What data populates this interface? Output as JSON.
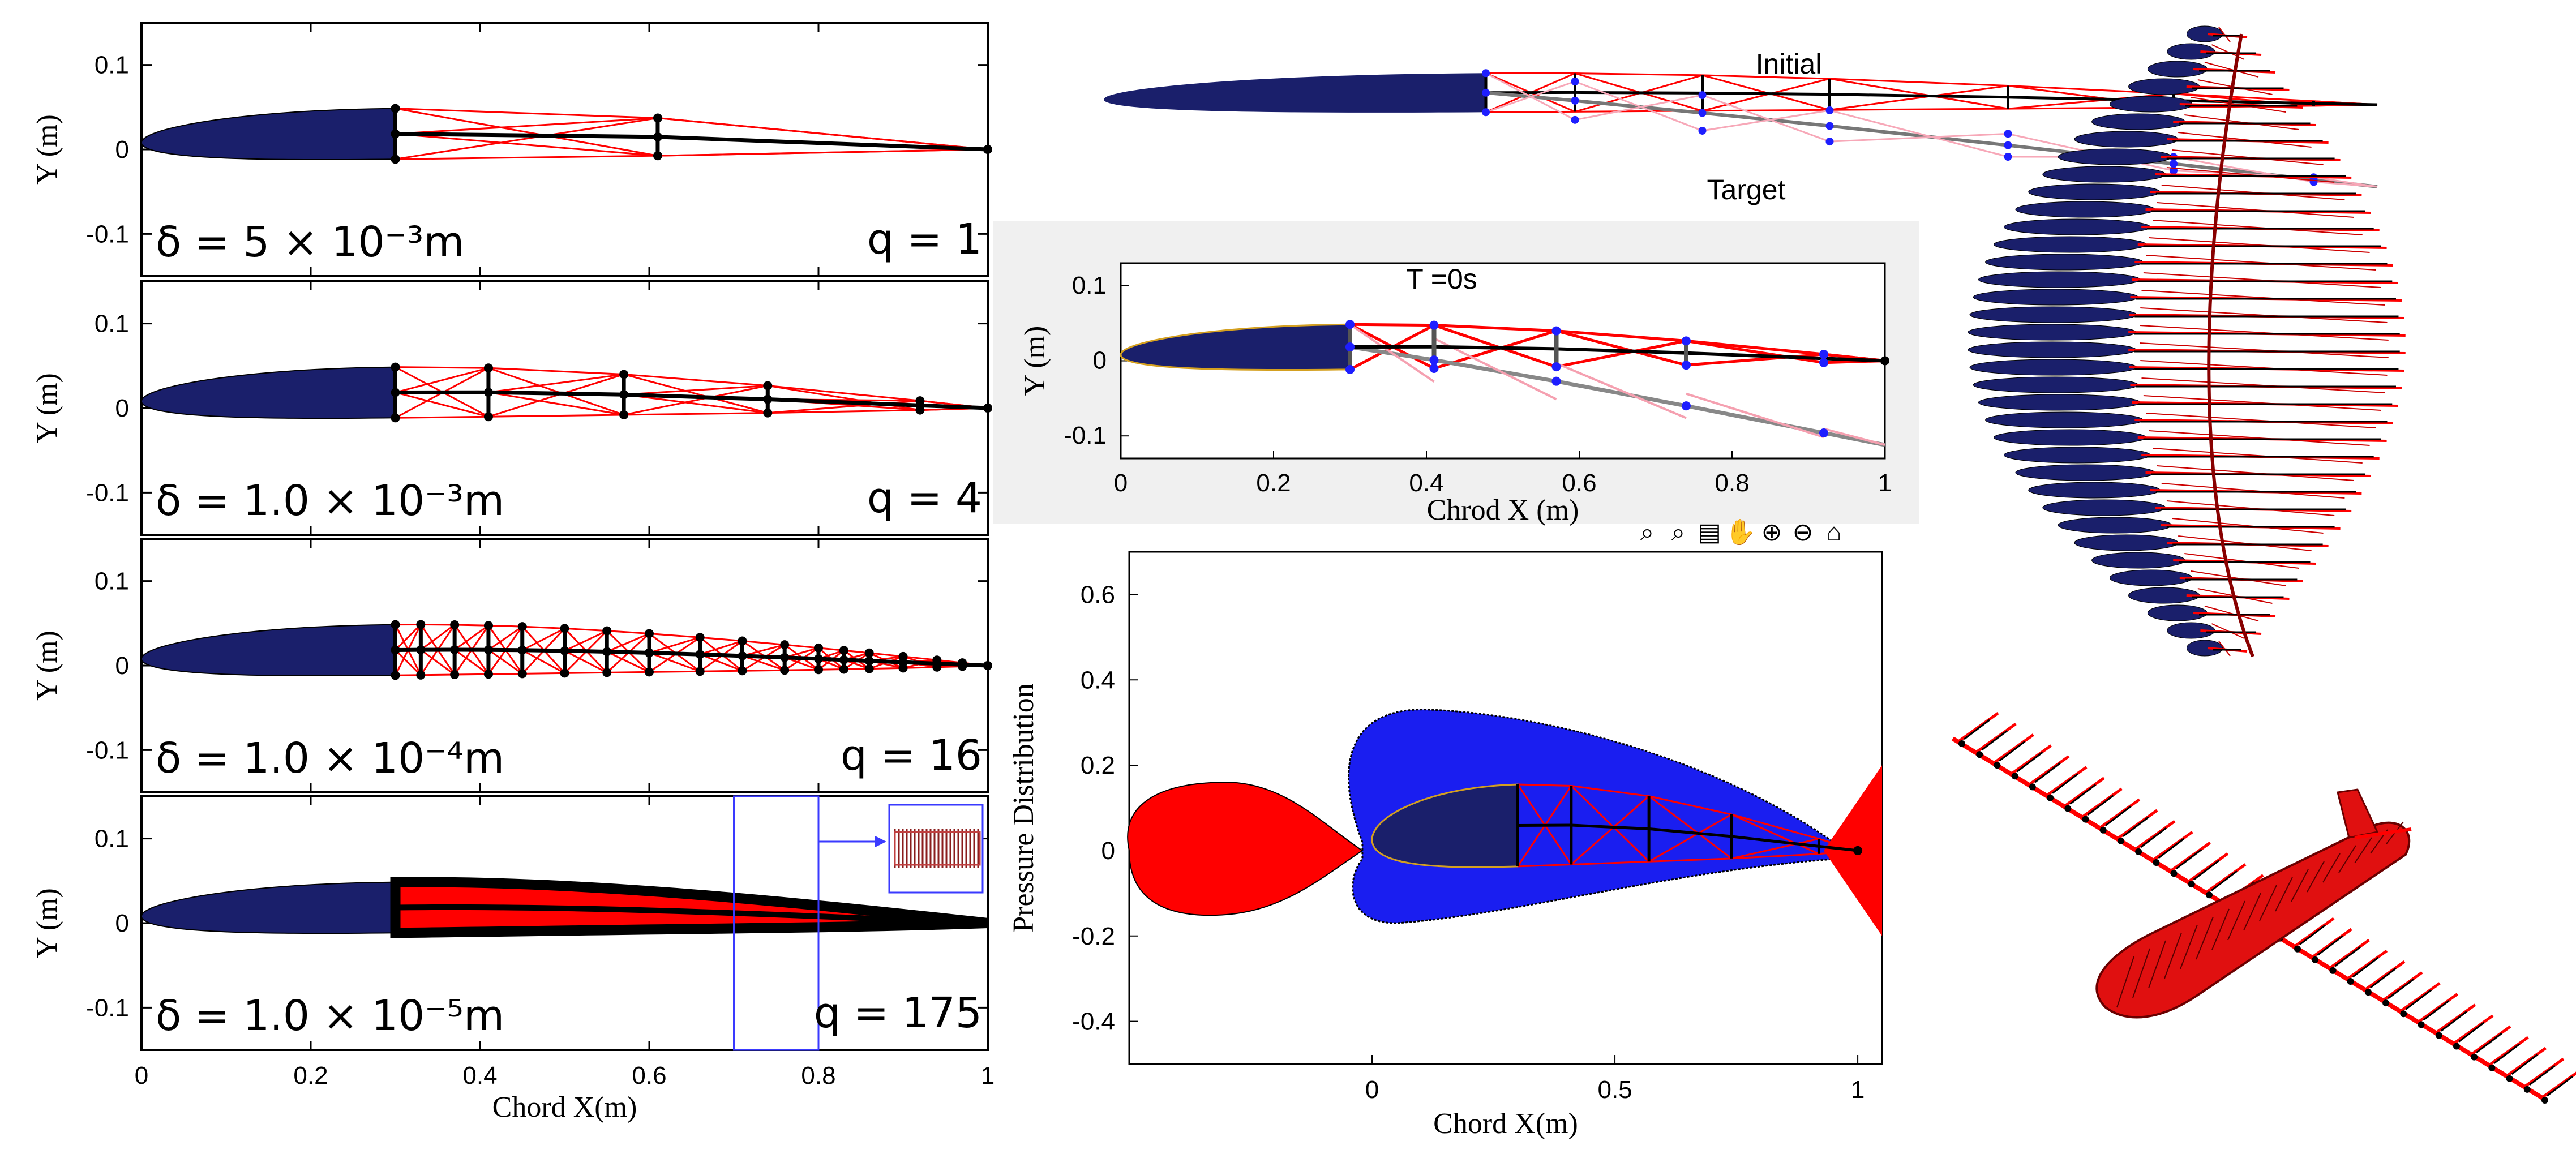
{
  "chart_data": [
    {
      "type": "line",
      "id": "tensegrity-panels",
      "xlabel": "Chord X(m)",
      "ylabel": "Y (m)",
      "xlim": [
        0,
        1
      ],
      "ylim": [
        -0.15,
        0.15
      ],
      "xticks": [
        "0",
        "0.2",
        "0.4",
        "0.6",
        "0.8",
        "1"
      ],
      "yticks": [
        "0.1",
        "0",
        "-0.1"
      ],
      "panels": [
        {
          "delta_label": "δ = 5 × 10⁻³m",
          "q_label": "q = 1",
          "nodes_x": [
            0.3,
            0.61,
            1.0
          ]
        },
        {
          "delta_label": "δ = 1.0 × 10⁻³m",
          "q_label": "q = 4",
          "nodes_x": [
            0.3,
            0.41,
            0.57,
            0.74,
            0.92,
            1.0
          ]
        },
        {
          "delta_label": "δ = 1.0 × 10⁻⁴m",
          "q_label": "q = 16",
          "nodes_x": [
            0.3,
            0.33,
            0.37,
            0.41,
            0.45,
            0.5,
            0.55,
            0.6,
            0.66,
            0.71,
            0.76,
            0.8,
            0.83,
            0.86,
            0.9,
            0.94,
            0.97,
            1.0
          ]
        },
        {
          "delta_label": "δ = 1.0 × 10⁻⁵m",
          "q_label": "q = 175",
          "nodes_x": [],
          "zoom_box_x": [
            0.7,
            0.8
          ]
        }
      ]
    },
    {
      "type": "line",
      "id": "deformation-sketch",
      "annotations": [
        "Initial",
        "Target"
      ]
    },
    {
      "type": "line",
      "id": "time-snapshot",
      "title": "T =0s",
      "xlabel": "Chrod X (m)",
      "ylabel": "Y (m)",
      "xlim": [
        0,
        1
      ],
      "ylim": [
        -0.13,
        0.13
      ],
      "xticks": [
        "0",
        "0.2",
        "0.4",
        "0.6",
        "0.8",
        "1"
      ],
      "yticks": [
        "0.1",
        "0",
        "-0.1"
      ]
    },
    {
      "type": "area",
      "id": "pressure-distribution",
      "xlabel": "Chord X(m)",
      "ylabel": "Pressure Distribution",
      "xlim": [
        -0.5,
        1.05
      ],
      "ylim": [
        -0.5,
        0.7
      ],
      "xticks": [
        "0",
        "0.5",
        "1"
      ],
      "yticks": [
        "0.6",
        "0.4",
        "0.2",
        "0",
        "-0.2",
        "-0.4"
      ],
      "series": [
        {
          "name": "",
          "color": "#1a1ef0"
        },
        {
          "name": "",
          "color": "#ff0000"
        }
      ]
    }
  ],
  "colors": {
    "airfoil": "#1a1f6b",
    "cable": "#ff0000",
    "bar": "#000000",
    "node_blue": "#1e1eff"
  }
}
